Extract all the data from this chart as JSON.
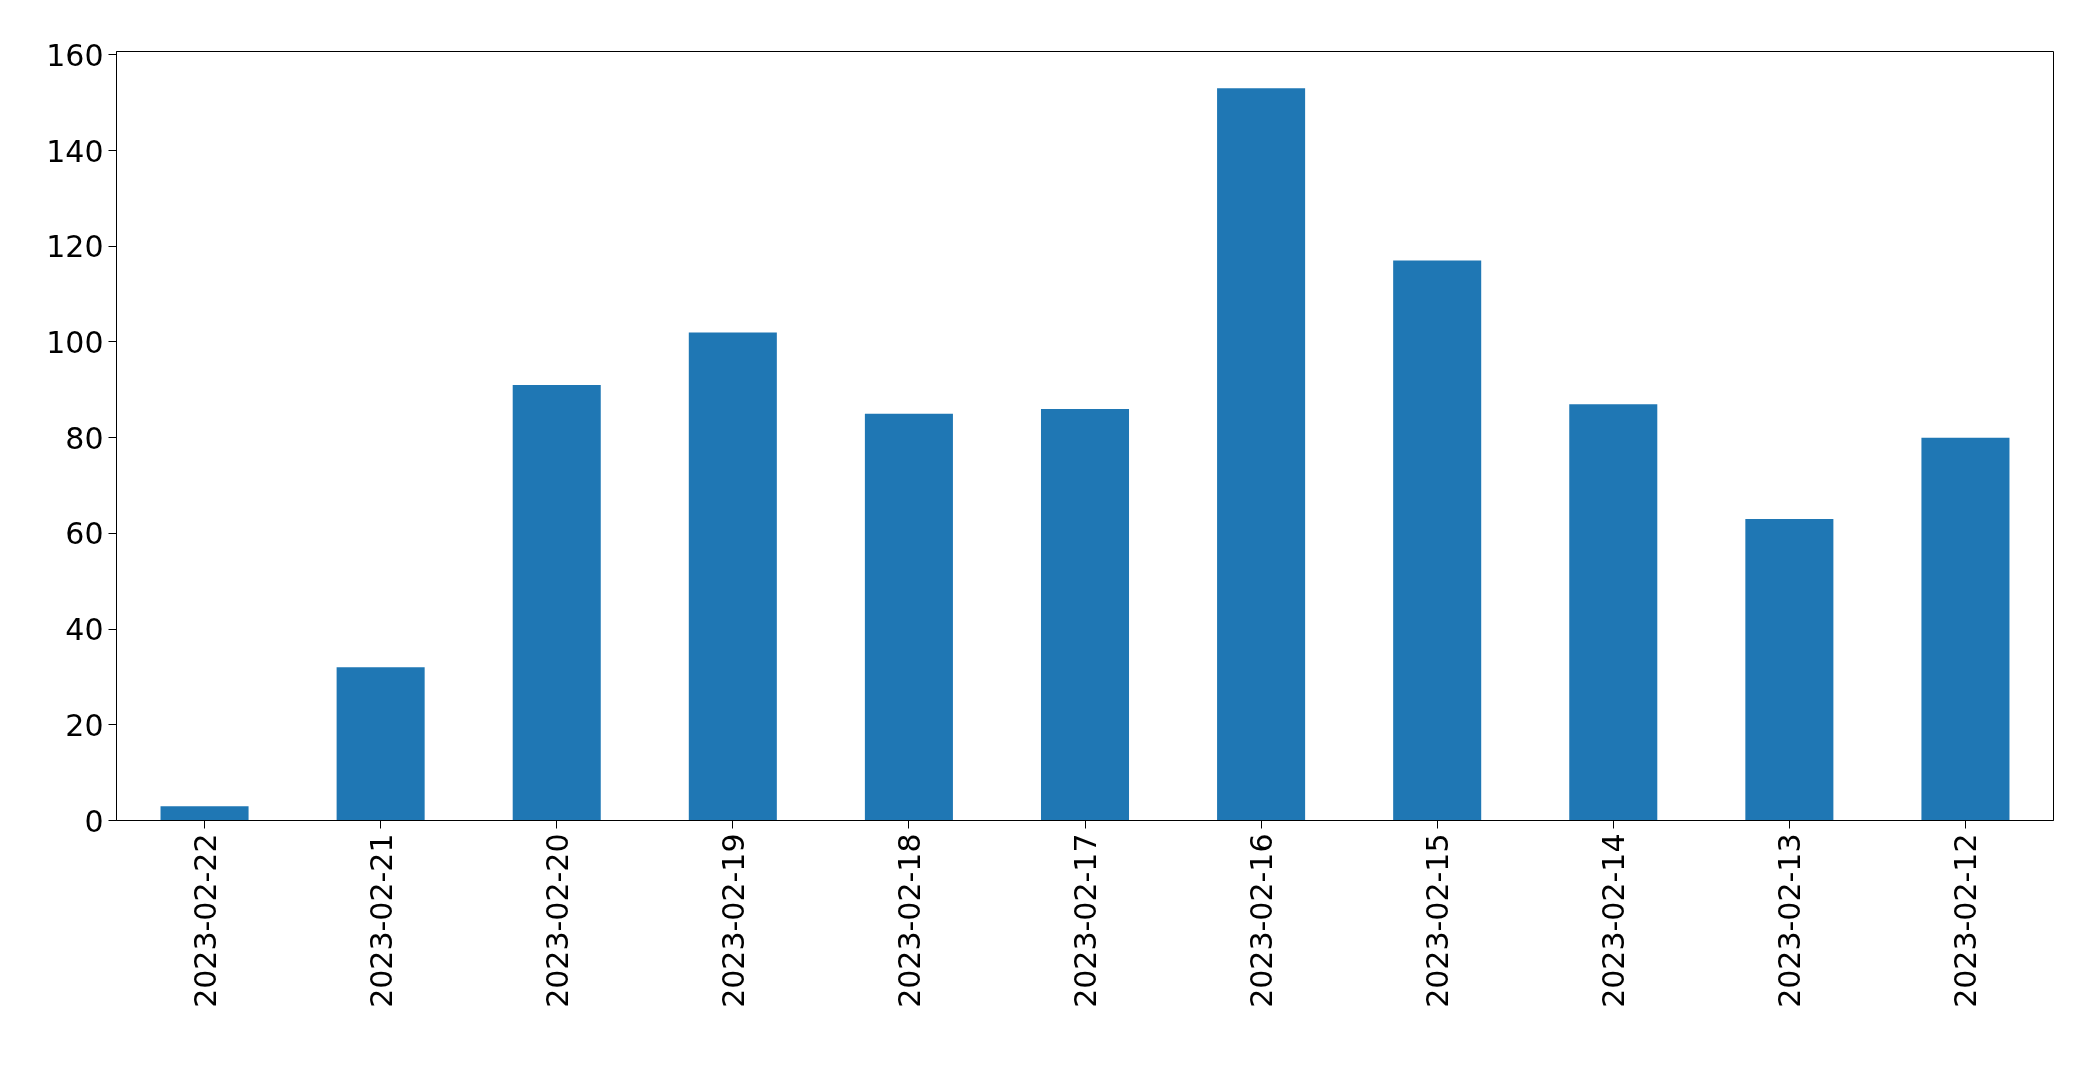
{
  "chart_data": {
    "type": "bar",
    "categories": [
      "2023-02-22",
      "2023-02-21",
      "2023-02-20",
      "2023-02-19",
      "2023-02-18",
      "2023-02-17",
      "2023-02-16",
      "2023-02-15",
      "2023-02-14",
      "2023-02-13",
      "2023-02-12"
    ],
    "values": [
      3,
      32,
      91,
      102,
      85,
      86,
      153,
      117,
      87,
      63,
      80
    ],
    "color": "#1f77b4",
    "ylim": [
      0,
      160.7
    ],
    "yticks": [
      0,
      20,
      40,
      60,
      80,
      100,
      120,
      140,
      160
    ],
    "grid": false
  }
}
